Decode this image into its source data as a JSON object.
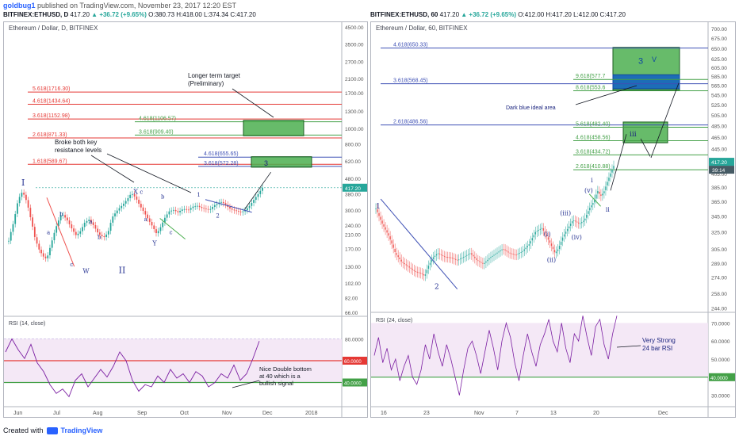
{
  "header": {
    "author": "goldbug1",
    "published": "published on TradingView.com, November 23, 2017 12:20 EST"
  },
  "left_symbol": {
    "symbol": "BITFINEX:ETHUSD, D",
    "price": "417.20",
    "change": "▲ +36.72 (+9.65%)",
    "ohlc": "O:380.73 H:418.00 L:374.34 C:417.20"
  },
  "right_symbol": {
    "symbol": "BITFINEX:ETHUSD, 60",
    "price": "417.20",
    "change": "▲ +36.72 (+9.65%)",
    "ohlc": "O:412.00 H:417.20 L:412.00 C:417.20"
  },
  "footer": {
    "created": "Created with",
    "brand": "TradingView"
  },
  "colors": {
    "up": "#26a69a",
    "down": "#ef5350",
    "fib_red": "#e53935",
    "fib_green": "#43a047",
    "fib_blue": "#3f51b5",
    "wave": "#283593",
    "rsi": "#7b1fa2",
    "rsi_band": "#f3e5f5",
    "box_green": "#4caf50",
    "box_blue": "#1565c0"
  },
  "chart_data": [
    {
      "type": "candlestick",
      "title": "Ethereum / Dollar, D, BITFINEX",
      "scale": "log",
      "ylim": [
        66,
        4500
      ],
      "y_ticks": [
        "4500.00",
        "3500.00",
        "2700.00",
        "2100.00",
        "1700.00",
        "1300.00",
        "1000.00",
        "800.00",
        "620.00",
        "480.00",
        "380.00",
        "300.00",
        "240.00",
        "210.00",
        "170.00",
        "130.00",
        "102.00",
        "82.00",
        "66.00"
      ],
      "x_ticks": [
        "Jun",
        "Jul",
        "Aug",
        "Sep",
        "Oct",
        "Nov",
        "Dec",
        "2018"
      ],
      "last_price_tag": "417.20",
      "price_path": [
        [
          0,
          190
        ],
        [
          5,
          255
        ],
        [
          9,
          350
        ],
        [
          13,
          395
        ],
        [
          17,
          340
        ],
        [
          21,
          260
        ],
        [
          25,
          195
        ],
        [
          29,
          165
        ],
        [
          33,
          150
        ],
        [
          36,
          145
        ],
        [
          40,
          180
        ],
        [
          45,
          235
        ],
        [
          50,
          285
        ],
        [
          55,
          260
        ],
        [
          60,
          225
        ],
        [
          64,
          205
        ],
        [
          68,
          220
        ],
        [
          72,
          250
        ],
        [
          76,
          260
        ],
        [
          80,
          240
        ],
        [
          85,
          210
        ],
        [
          90,
          200
        ],
        [
          94,
          215
        ],
        [
          98,
          270
        ],
        [
          103,
          300
        ],
        [
          108,
          325
        ],
        [
          112,
          350
        ],
        [
          116,
          385
        ],
        [
          120,
          360
        ],
        [
          124,
          320
        ],
        [
          128,
          290
        ],
        [
          132,
          260
        ],
        [
          136,
          235
        ],
        [
          140,
          210
        ],
        [
          144,
          235
        ],
        [
          148,
          270
        ],
        [
          152,
          295
        ],
        [
          156,
          300
        ],
        [
          160,
          290
        ],
        [
          165,
          305
        ],
        [
          170,
          300
        ],
        [
          174,
          315
        ],
        [
          178,
          320
        ],
        [
          182,
          310
        ],
        [
          186,
          305
        ],
        [
          190,
          300
        ],
        [
          194,
          320
        ],
        [
          198,
          330
        ],
        [
          200,
          340
        ],
        [
          204,
          330
        ],
        [
          208,
          310
        ],
        [
          212,
          300
        ],
        [
          216,
          295
        ],
        [
          220,
          290
        ],
        [
          224,
          300
        ],
        [
          228,
          320
        ],
        [
          232,
          350
        ],
        [
          236,
          380
        ],
        [
          240,
          417
        ]
      ],
      "fib_levels": [
        {
          "label": "5.618(1716.30)",
          "value": 1716.3,
          "color": "red"
        },
        {
          "label": "4.618(1434.64)",
          "value": 1434.64,
          "color": "red"
        },
        {
          "label": "3.618(1152.98)",
          "value": 1152.98,
          "color": "red"
        },
        {
          "label": "2.618(871.33)",
          "value": 871.33,
          "color": "red"
        },
        {
          "label": "1.618(589.67)",
          "value": 589.67,
          "color": "red"
        },
        {
          "label": "4.618(1106.57)",
          "value": 1106.57,
          "color": "green"
        },
        {
          "label": "3.618(909.40)",
          "value": 909.4,
          "color": "green"
        },
        {
          "label": "4.618(655.65)",
          "value": 655.65,
          "color": "blue"
        },
        {
          "label": "3.618(572.28)",
          "value": 572.28,
          "color": "blue"
        }
      ],
      "annotations": [
        "Longer term target",
        "(Preliminary)",
        "Broke both key",
        "resistance levels",
        "3"
      ],
      "wave_labels": [
        "I",
        "II",
        "W",
        "X",
        "Y",
        "a",
        "b",
        "c",
        "a",
        "b",
        "c",
        "a",
        "b",
        "c",
        "1",
        "2"
      ],
      "rsi": {
        "title": "RSI (14, close)",
        "ticks": [
          "80.0000",
          "40.0000"
        ],
        "hlines": [
          {
            "label": "60.0000",
            "value": 60,
            "color": "red"
          },
          {
            "label": "40.0000",
            "value": 40,
            "color": "green"
          }
        ],
        "annotation": [
          "Nice Double bottom",
          "at 40 which is a",
          "bullish signal"
        ],
        "path": [
          [
            0,
            68
          ],
          [
            8,
            80
          ],
          [
            16,
            70
          ],
          [
            24,
            62
          ],
          [
            32,
            75
          ],
          [
            40,
            58
          ],
          [
            48,
            50
          ],
          [
            56,
            38
          ],
          [
            64,
            30
          ],
          [
            72,
            34
          ],
          [
            80,
            27
          ],
          [
            88,
            42
          ],
          [
            96,
            48
          ],
          [
            104,
            36
          ],
          [
            112,
            44
          ],
          [
            120,
            52
          ],
          [
            128,
            45
          ],
          [
            136,
            55
          ],
          [
            144,
            68
          ],
          [
            152,
            60
          ],
          [
            160,
            42
          ],
          [
            168,
            32
          ],
          [
            176,
            38
          ],
          [
            184,
            36
          ],
          [
            192,
            46
          ],
          [
            200,
            40
          ],
          [
            208,
            52
          ],
          [
            216,
            44
          ],
          [
            224,
            48
          ],
          [
            232,
            40
          ],
          [
            240,
            50
          ],
          [
            248,
            46
          ],
          [
            256,
            36
          ],
          [
            264,
            40
          ],
          [
            272,
            48
          ],
          [
            280,
            44
          ],
          [
            288,
            56
          ],
          [
            296,
            42
          ],
          [
            304,
            48
          ],
          [
            312,
            62
          ],
          [
            320,
            78
          ]
        ]
      }
    },
    {
      "type": "candlestick",
      "title": "Ethereum / Dollar, 60, BITFINEX",
      "scale": "log",
      "ylim": [
        240,
        700
      ],
      "y_ticks": [
        "700.00",
        "675.00",
        "650.00",
        "625.00",
        "605.00",
        "585.00",
        "565.00",
        "545.00",
        "525.00",
        "505.00",
        "485.00",
        "465.00",
        "445.00",
        "425.00",
        "405.00",
        "385.00",
        "365.00",
        "345.00",
        "325.00",
        "305.00",
        "289.00",
        "274.00",
        "258.00",
        "244.00"
      ],
      "x_ticks": [
        "16",
        "23",
        "Nov",
        "7",
        "13",
        "20",
        "Dec"
      ],
      "last_price_tag": "417.20",
      "time_tag": "39:14",
      "price_path": [
        [
          0,
          355
        ],
        [
          8,
          335
        ],
        [
          16,
          320
        ],
        [
          24,
          300
        ],
        [
          32,
          290
        ],
        [
          40,
          285
        ],
        [
          48,
          280
        ],
        [
          56,
          278
        ],
        [
          60,
          275
        ],
        [
          64,
          285
        ],
        [
          70,
          295
        ],
        [
          76,
          300
        ],
        [
          84,
          296
        ],
        [
          92,
          295
        ],
        [
          100,
          292
        ],
        [
          108,
          296
        ],
        [
          116,
          300
        ],
        [
          124,
          292
        ],
        [
          132,
          288
        ],
        [
          140,
          295
        ],
        [
          148,
          300
        ],
        [
          156,
          305
        ],
        [
          164,
          300
        ],
        [
          172,
          298
        ],
        [
          180,
          302
        ],
        [
          188,
          310
        ],
        [
          196,
          325
        ],
        [
          204,
          330
        ],
        [
          212,
          315
        ],
        [
          220,
          300
        ],
        [
          224,
          305
        ],
        [
          230,
          320
        ],
        [
          236,
          330
        ],
        [
          242,
          340
        ],
        [
          250,
          335
        ],
        [
          256,
          340
        ],
        [
          262,
          355
        ],
        [
          268,
          365
        ],
        [
          272,
          380
        ],
        [
          276,
          372
        ],
        [
          280,
          378
        ],
        [
          284,
          392
        ],
        [
          288,
          405
        ],
        [
          292,
          417
        ]
      ],
      "fib_levels": [
        {
          "label": "4.618(650.33)",
          "value": 650.33,
          "color": "blue"
        },
        {
          "label": "3.618(568.45)",
          "value": 568.45,
          "color": "blue"
        },
        {
          "label": "2.618(486.56)",
          "value": 486.56,
          "color": "blue"
        },
        {
          "label": "9.618(577.7",
          "value": 577.7,
          "color": "green"
        },
        {
          "label": "8.618(553.6",
          "value": 553.6,
          "color": "green"
        },
        {
          "label": "5.618(482.40)",
          "value": 482.4,
          "color": "green"
        },
        {
          "label": "4.618(458.56)",
          "value": 458.56,
          "color": "green"
        },
        {
          "label": "3.618(434.72)",
          "value": 434.72,
          "color": "green"
        },
        {
          "label": "2.618(410.88)",
          "value": 410.88,
          "color": "green"
        }
      ],
      "annotations": [
        "Dark blue ideal area",
        "3",
        "V",
        "iii"
      ],
      "wave_labels": [
        "1",
        "2",
        "(i)",
        "(ii)",
        "(iii)",
        "(iv)",
        "(v)",
        "i",
        "ii"
      ],
      "rsi": {
        "title": "RSI (24, close)",
        "ticks": [
          "70.0000",
          "60.0000",
          "50.0000",
          "40.0000",
          "30.0000"
        ],
        "hlines": [
          {
            "label": "40.0000",
            "value": 40,
            "color": "green"
          }
        ],
        "ylim": [
          25,
          75
        ],
        "annotation": [
          "Very Strong",
          "24 bar RSI"
        ],
        "path": [
          [
            0,
            52
          ],
          [
            6,
            62
          ],
          [
            12,
            48
          ],
          [
            18,
            56
          ],
          [
            24,
            44
          ],
          [
            30,
            50
          ],
          [
            36,
            38
          ],
          [
            42,
            46
          ],
          [
            48,
            52
          ],
          [
            54,
            40
          ],
          [
            60,
            36
          ],
          [
            66,
            44
          ],
          [
            72,
            58
          ],
          [
            78,
            50
          ],
          [
            84,
            64
          ],
          [
            90,
            54
          ],
          [
            96,
            46
          ],
          [
            102,
            58
          ],
          [
            108,
            50
          ],
          [
            114,
            40
          ],
          [
            120,
            30
          ],
          [
            126,
            44
          ],
          [
            132,
            56
          ],
          [
            138,
            60
          ],
          [
            144,
            52
          ],
          [
            150,
            42
          ],
          [
            156,
            54
          ],
          [
            162,
            66
          ],
          [
            168,
            56
          ],
          [
            174,
            44
          ],
          [
            180,
            60
          ],
          [
            186,
            70
          ],
          [
            192,
            62
          ],
          [
            198,
            48
          ],
          [
            204,
            38
          ],
          [
            210,
            52
          ],
          [
            216,
            64
          ],
          [
            222,
            54
          ],
          [
            228,
            46
          ],
          [
            234,
            58
          ],
          [
            240,
            64
          ],
          [
            246,
            72
          ],
          [
            252,
            60
          ],
          [
            258,
            54
          ],
          [
            264,
            70
          ],
          [
            270,
            56
          ],
          [
            276,
            48
          ],
          [
            282,
            64
          ],
          [
            288,
            60
          ],
          [
            294,
            74
          ],
          [
            300,
            62
          ],
          [
            306,
            52
          ],
          [
            312,
            68
          ],
          [
            318,
            72
          ],
          [
            324,
            58
          ],
          [
            330,
            50
          ],
          [
            336,
            64
          ],
          [
            342,
            74
          ]
        ]
      }
    }
  ]
}
